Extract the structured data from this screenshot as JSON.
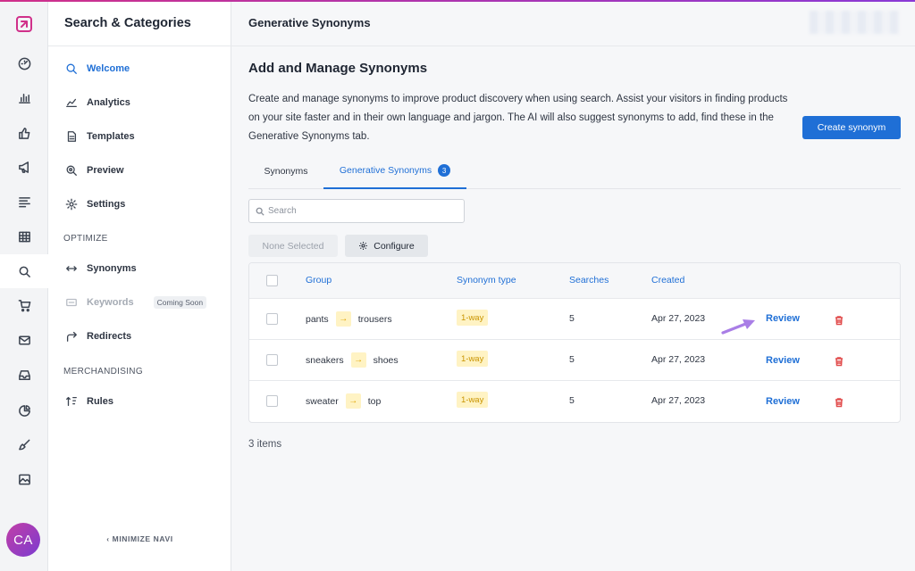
{
  "colors": {
    "accent": "#1f6fd6",
    "brand": "#d0308a",
    "tag_bg": "#fff3c4",
    "danger": "#e14b4b"
  },
  "rail": {
    "items": [
      {
        "icon": "logo-icon"
      },
      {
        "icon": "dashboard-icon"
      },
      {
        "icon": "bar-chart-icon"
      },
      {
        "icon": "thumbs-up-icon"
      },
      {
        "icon": "megaphone-icon"
      },
      {
        "icon": "list-icon"
      },
      {
        "icon": "table-icon"
      },
      {
        "icon": "search-icon"
      },
      {
        "icon": "cart-icon"
      },
      {
        "icon": "mail-icon"
      },
      {
        "icon": "inbox-icon"
      },
      {
        "icon": "pie-chart-icon"
      },
      {
        "icon": "brush-icon"
      },
      {
        "icon": "image-icon"
      }
    ],
    "avatar": "CA"
  },
  "sidebar": {
    "title": "Search & Categories",
    "items": [
      {
        "label": "Welcome",
        "icon": "search-icon"
      },
      {
        "label": "Analytics",
        "icon": "line-chart-icon"
      },
      {
        "label": "Templates",
        "icon": "document-icon"
      },
      {
        "label": "Preview",
        "icon": "zoom-icon"
      },
      {
        "label": "Settings",
        "icon": "gear-icon"
      }
    ],
    "sections": {
      "optimize": "OPTIMIZE",
      "merchandising": "MERCHANDISING"
    },
    "optimize_items": [
      {
        "label": "Synonyms",
        "icon": "swap-arrows-icon"
      },
      {
        "label": "Keywords",
        "icon": "keyword-icon",
        "badge": "Coming Soon"
      },
      {
        "label": "Redirects",
        "icon": "redirect-icon"
      }
    ],
    "merch_items": [
      {
        "label": "Rules",
        "icon": "sort-icon"
      }
    ],
    "minimize": "MINIMIZE NAVI"
  },
  "main": {
    "page_title": "Generative Synonyms",
    "heading": "Add and Manage Synonyms",
    "description": "Create and manage synonyms to improve product discovery when using search. Assist your visitors in finding products on your site faster and in their own language and jargon. The AI will also suggest synonyms to add, find these in the Generative Synonyms tab.",
    "create_button": "Create synonym",
    "tabs": [
      {
        "label": "Synonyms"
      },
      {
        "label": "Generative Synonyms",
        "badge": "3"
      }
    ],
    "search_placeholder": "Search",
    "none_selected": "None Selected",
    "configure": "Configure",
    "table": {
      "headers": [
        "Group",
        "Synonym type",
        "Searches",
        "Created"
      ],
      "rows": [
        {
          "from": "pants",
          "to": "trousers",
          "type": "1-way",
          "searches": "5",
          "created": "Apr 27, 2023",
          "action": "Review"
        },
        {
          "from": "sneakers",
          "to": "shoes",
          "type": "1-way",
          "searches": "5",
          "created": "Apr 27, 2023",
          "action": "Review"
        },
        {
          "from": "sweater",
          "to": "top",
          "type": "1-way",
          "searches": "5",
          "created": "Apr 27, 2023",
          "action": "Review"
        }
      ]
    },
    "item_count": "3 items"
  }
}
